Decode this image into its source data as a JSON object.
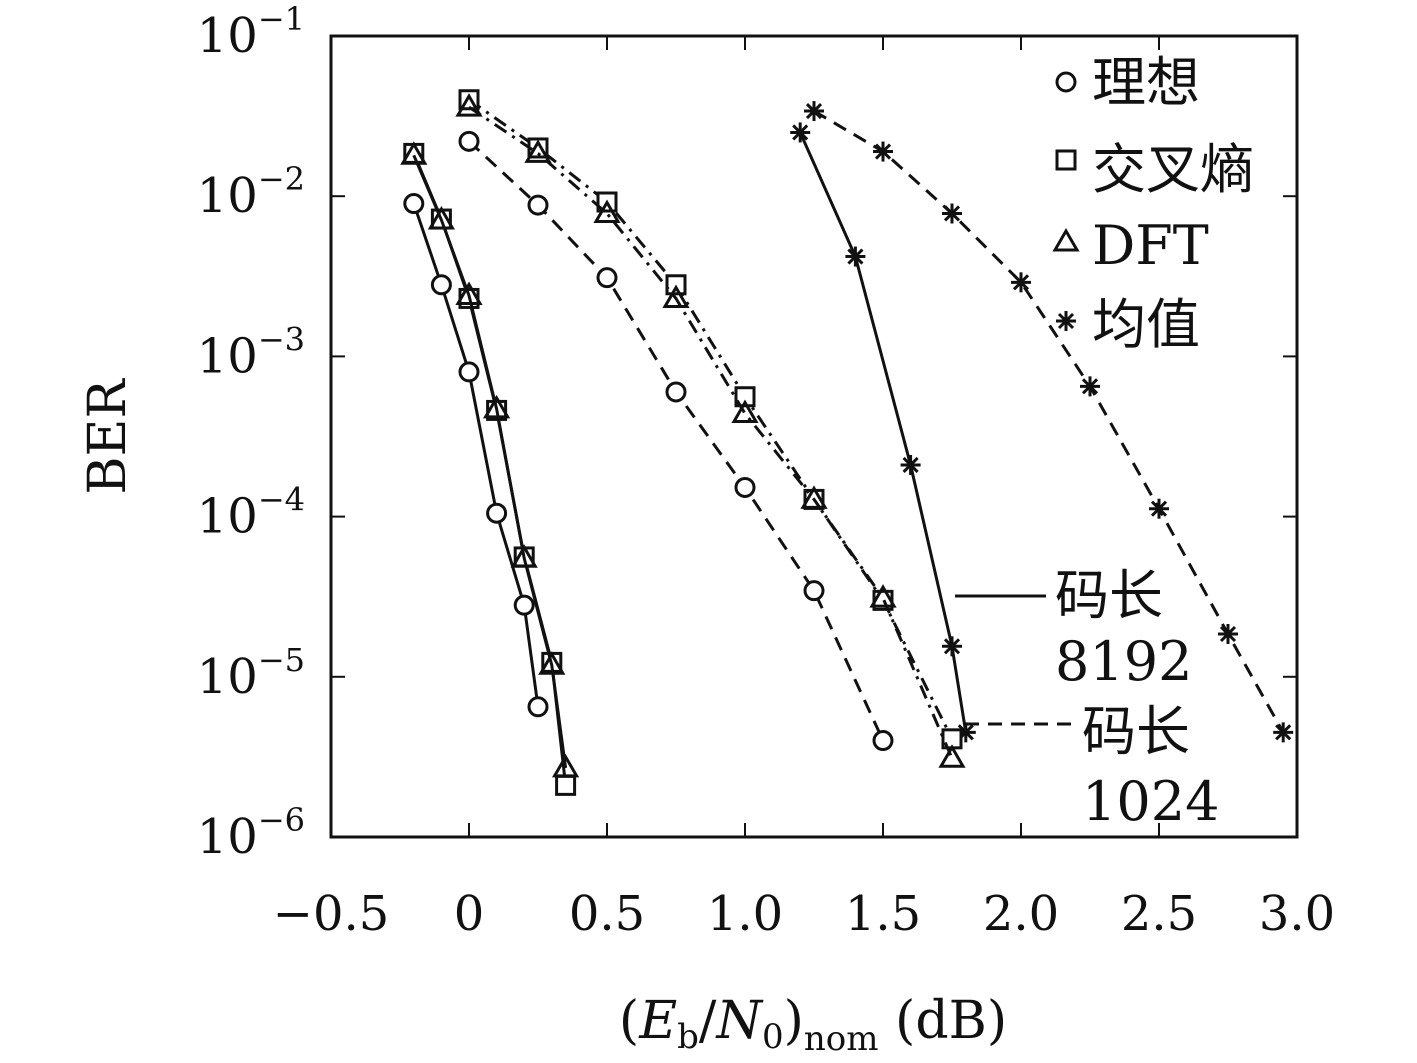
{
  "chart_data": {
    "type": "line",
    "title": "",
    "xlabel": "(E_b/N_0)_nom (dB)",
    "xlabel_parts": {
      "open": "(",
      "E": "E",
      "b": "b",
      "slash": "/",
      "N": "N",
      "zero": "0",
      "close": ")",
      "nom": "nom",
      "unit": "(dB)"
    },
    "ylabel": "BER",
    "yscale": "log",
    "xlim": [
      -0.5,
      3.0
    ],
    "ylim": [
      1e-06,
      0.1
    ],
    "xticks": [
      -0.5,
      0,
      0.5,
      1.0,
      1.5,
      2.0,
      2.5,
      3.0
    ],
    "xtick_labels": [
      "−0.5",
      "0",
      "0.5",
      "1.0",
      "1.5",
      "2.0",
      "2.5",
      "3.0"
    ],
    "yticks": [
      {
        "value": 0.1,
        "base": "10",
        "exp": "−1"
      },
      {
        "value": 0.01,
        "base": "10",
        "exp": "−2"
      },
      {
        "value": 0.001,
        "base": "10",
        "exp": "−3"
      },
      {
        "value": 0.0001,
        "base": "10",
        "exp": "−4"
      },
      {
        "value": 1e-05,
        "base": "10",
        "exp": "−5"
      },
      {
        "value": 1e-06,
        "base": "10",
        "exp": "−6"
      }
    ],
    "grid": false,
    "legend": {
      "placement": "top-right",
      "entries": [
        {
          "marker": "circle",
          "label": "理想"
        },
        {
          "marker": "square",
          "label": "交叉熵"
        },
        {
          "marker": "triangle",
          "label": "DFT"
        },
        {
          "marker": "asterisk",
          "label": "均值"
        }
      ]
    },
    "line_legend": [
      {
        "style": "solid",
        "line1": "码长",
        "line2": "8192"
      },
      {
        "style": "dashed",
        "line1": "码长",
        "line2": "1024"
      }
    ],
    "series": [
      {
        "name": "理想",
        "code_length": "8192",
        "marker": "circle",
        "line": "solid",
        "x": [
          -0.2,
          -0.1,
          0.0,
          0.1,
          0.2,
          0.25
        ],
        "y": [
          0.009,
          0.0028,
          0.0008,
          0.000105,
          2.8e-05,
          6.5e-06
        ]
      },
      {
        "name": "交叉熵",
        "code_length": "8192",
        "marker": "square",
        "line": "solid",
        "x": [
          -0.2,
          -0.1,
          0.0,
          0.1,
          0.2,
          0.3,
          0.35
        ],
        "y": [
          0.0185,
          0.0072,
          0.0023,
          0.00046,
          5.6e-05,
          1.23e-05,
          2.1e-06
        ]
      },
      {
        "name": "DFT",
        "code_length": "8192",
        "marker": "triangle",
        "line": "solid",
        "x": [
          -0.2,
          -0.1,
          0.0,
          0.1,
          0.2,
          0.3,
          0.35
        ],
        "y": [
          0.018,
          0.0071,
          0.0024,
          0.00047,
          5.5e-05,
          1.18e-05,
          2.7e-06
        ]
      },
      {
        "name": "均值",
        "code_length": "8192",
        "marker": "asterisk",
        "line": "solid",
        "x": [
          1.2,
          1.4,
          1.6,
          1.75,
          1.8
        ],
        "y": [
          0.025,
          0.0042,
          0.00021,
          1.55e-05,
          4.5e-06
        ]
      },
      {
        "name": "理想",
        "code_length": "1024",
        "marker": "circle",
        "line": "dashed",
        "x": [
          0.0,
          0.25,
          0.5,
          0.75,
          1.0,
          1.25,
          1.5
        ],
        "y": [
          0.022,
          0.0088,
          0.0031,
          0.0006,
          0.000152,
          3.45e-05,
          4e-06
        ]
      },
      {
        "name": "交叉熵",
        "code_length": "1024",
        "marker": "square",
        "line": "dashdot",
        "x": [
          0.0,
          0.25,
          0.5,
          0.75,
          1.0,
          1.25,
          1.5,
          1.75
        ],
        "y": [
          0.04,
          0.02,
          0.0092,
          0.0028,
          0.00056,
          0.000128,
          3e-05,
          4.1e-06
        ]
      },
      {
        "name": "DFT",
        "code_length": "1024",
        "marker": "triangle",
        "line": "dashdot",
        "x": [
          0.0,
          0.25,
          0.5,
          0.75,
          1.0,
          1.25,
          1.5,
          1.75
        ],
        "y": [
          0.036,
          0.0185,
          0.0078,
          0.0023,
          0.00044,
          0.000128,
          3.1e-05,
          3.1e-06
        ]
      },
      {
        "name": "均值",
        "code_length": "1024",
        "marker": "asterisk",
        "line": "dashed",
        "x": [
          1.25,
          1.5,
          1.75,
          2.0,
          2.25,
          2.5,
          2.75,
          2.95
        ],
        "y": [
          0.034,
          0.019,
          0.0078,
          0.0029,
          0.00065,
          0.000112,
          1.85e-05,
          4.5e-06
        ]
      }
    ]
  }
}
